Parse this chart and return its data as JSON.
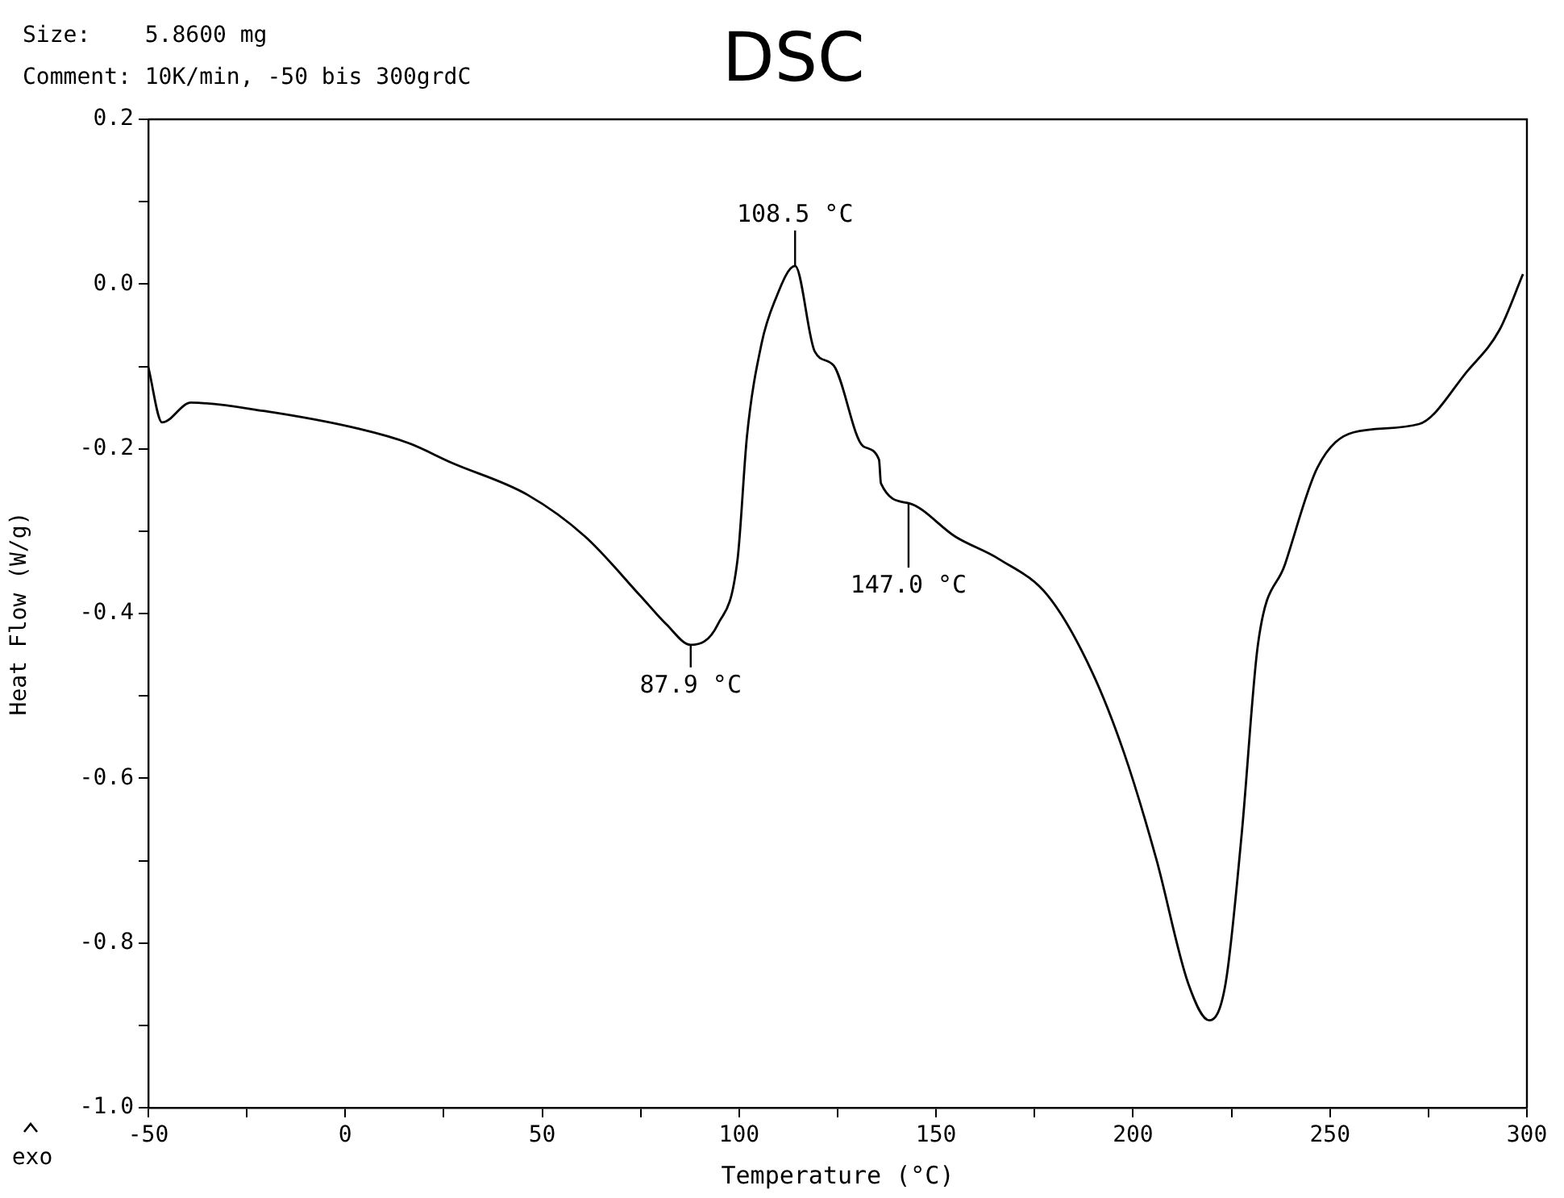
{
  "chart_data": {
    "type": "line",
    "title": "DSC",
    "xlabel": "Temperature (°C)",
    "ylabel": "Heat Flow (W/g)",
    "annotations": [
      "Size:    5.8600 mg",
      "Comment: 10K/min, -50 bis 300grdC",
      "exo",
      {
        "text": "108.5 °C",
        "x": 114.2,
        "y": 0.022
      },
      {
        "text": "87.9 °C",
        "x": 87.7,
        "y": -0.438
      },
      {
        "text": "147.0 °C",
        "x": 143,
        "y": -0.266
      }
    ],
    "series": [
      {
        "color": "#000000",
        "x": [
          -50,
          -46.5,
          -39.2,
          -20.8,
          3.7,
          16,
          27,
          46.3,
          61,
          75,
          81.5,
          87.7,
          94.6,
          99.6,
          102,
          105.7,
          109,
          114.2,
          119.2,
          124,
          131.5,
          135.5,
          136,
          143,
          155,
          166,
          178.5,
          189.6,
          197.7,
          205.9,
          214,
          219.4,
          223.5,
          227.6,
          231.7,
          238.6,
          246.8,
          256,
          272.6,
          285,
          293,
          299
        ],
        "values": [
          -0.101,
          -0.168,
          -0.144,
          -0.154,
          -0.176,
          -0.193,
          -0.217,
          -0.256,
          -0.307,
          -0.379,
          -0.413,
          -0.438,
          -0.413,
          -0.334,
          -0.184,
          -0.072,
          -0.021,
          0.022,
          -0.082,
          -0.099,
          -0.197,
          -0.213,
          -0.242,
          -0.266,
          -0.307,
          -0.334,
          -0.379,
          -0.471,
          -0.569,
          -0.698,
          -0.849,
          -0.894,
          -0.849,
          -0.667,
          -0.438,
          -0.34,
          -0.223,
          -0.18,
          -0.17,
          -0.105,
          -0.056,
          0.012
        ]
      }
    ],
    "xlim": [
      -50,
      300
    ],
    "xticks": [
      -50,
      {
        "value": -25,
        "label": null
      },
      0,
      {
        "value": 25,
        "label": null
      },
      50,
      {
        "value": 75,
        "label": null
      },
      100,
      {
        "value": 125,
        "label": null
      },
      150,
      {
        "value": 175,
        "label": null
      },
      200,
      {
        "value": 225,
        "label": null
      },
      250,
      {
        "value": 275,
        "label": null
      },
      300
    ],
    "ylim": [
      -1.0,
      0.2
    ],
    "yticks": [
      {
        "value": -1.0,
        "label": "-1.0"
      },
      {
        "value": -0.9,
        "label": null
      },
      {
        "value": -0.8,
        "label": "-0.8"
      },
      {
        "value": -0.7,
        "label": null
      },
      {
        "value": -0.6,
        "label": "-0.6"
      },
      {
        "value": -0.5,
        "label": null
      },
      {
        "value": -0.4,
        "label": "-0.4"
      },
      {
        "value": -0.3,
        "label": null
      },
      {
        "value": -0.2,
        "label": "-0.2"
      },
      {
        "value": -0.1,
        "label": null
      },
      {
        "value": 0,
        "label": "0.0"
      },
      {
        "value": 0.1,
        "label": null
      },
      {
        "value": 0.2,
        "label": "0.2"
      }
    ],
    "marker": "none",
    "legend": false
  }
}
